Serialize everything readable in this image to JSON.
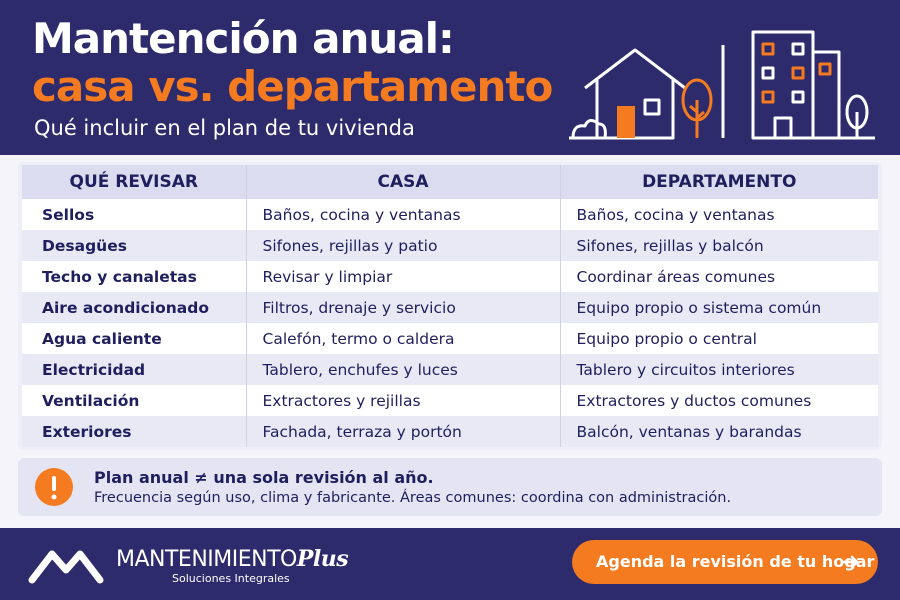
{
  "header": {
    "title_line1": "Mantención anual:",
    "title_line2": "casa vs. departamento",
    "subtitle": "Qué incluir en el plan de tu vivienda"
  },
  "table": {
    "headers": [
      "QUÉ REVISAR",
      "CASA",
      "DEPARTAMENTO"
    ],
    "rows": [
      [
        "Sellos",
        "Baños, cocina y ventanas",
        "Baños, cocina y ventanas"
      ],
      [
        "Desagües",
        "Sifones, rejillas y patio",
        "Sifones, rejillas y balcón"
      ],
      [
        "Techo y canaletas",
        "Revisar y limpiar",
        "Coordinar áreas comunes"
      ],
      [
        "Aire acondicionado",
        "Filtros, drenaje y servicio",
        "Equipo propio o sistema común"
      ],
      [
        "Agua caliente",
        "Calefón, termo o caldera",
        "Equipo propio o central"
      ],
      [
        "Electricidad",
        "Tablero, enchufes y luces",
        "Tablero y circuitos interiores"
      ],
      [
        "Ventilación",
        "Extractores y rejillas",
        "Extractores y ductos comunes"
      ],
      [
        "Exteriores",
        "Fachada, terraza y portón",
        "Balcón, ventanas y barandas"
      ]
    ]
  },
  "note": {
    "title": "Plan anual ≠ una sola revisión al año.",
    "text": "Frecuencia según uso, clima y fabricante. Áreas comunes: coordina con administración."
  },
  "footer": {
    "brand_main": "MANTENIMIENTO",
    "brand_accent": "Plus",
    "tagline": "Soluciones Integrales",
    "cta": "Agenda la revisión de tu hogar"
  }
}
